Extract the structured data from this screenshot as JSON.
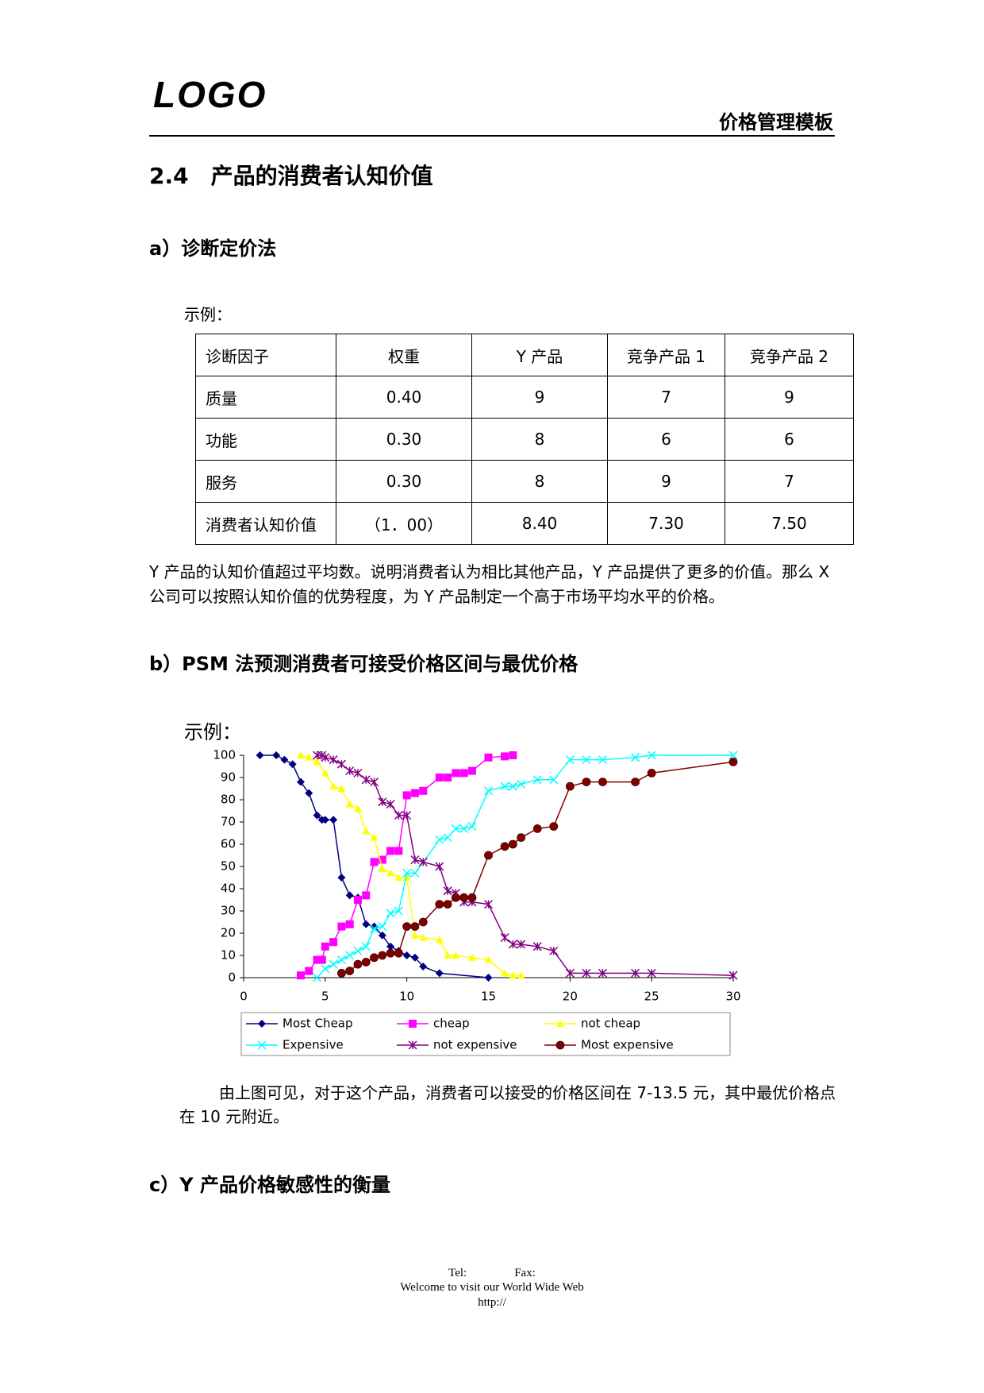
{
  "header": {
    "logo": "LOGO",
    "title": "价格管理模板"
  },
  "section": {
    "title": "2.4　产品的消费者认知价值"
  },
  "part_a": {
    "title": "a）诊断定价法",
    "example": "示例：",
    "table": {
      "header": [
        "诊断因子",
        "权重",
        "Y 产品",
        "竞争产品 1",
        "竞争产品 2"
      ],
      "rows": [
        [
          "质量",
          "0.40",
          "9",
          "7",
          "9"
        ],
        [
          "功能",
          "0.30",
          "8",
          "6",
          "6"
        ],
        [
          "服务",
          "0.30",
          "8",
          "9",
          "7"
        ],
        [
          "消费者认知价值",
          "（1．00）",
          "8.40",
          "7.30",
          "7.50"
        ]
      ]
    },
    "paragraph": "Y 产品的认知价值超过平均数。说明消费者认为相比其他产品，Y 产品提供了更多的价值。那么 X 公司可以按照认知价值的优势程度，为 Y 产品制定一个高于市场平均水平的价格。"
  },
  "part_b": {
    "title": "b）PSM 法预测消费者可接受价格区间与最优价格",
    "example": "示例：",
    "paragraph": "由上图可见，对于这个产品，消费者可以接受的价格区间在 7-13.5 元，其中最优价格点在 10 元附近。"
  },
  "part_c": {
    "title": "c）Y 产品价格敏感性的衡量"
  },
  "footer": {
    "tel": "Tel:",
    "fax": "Fax:",
    "welcome": "Welcome to visit our World Wide Web",
    "url": "http://"
  },
  "chart_data": {
    "type": "line",
    "xlim": [
      0,
      30
    ],
    "xticks": [
      0,
      5,
      10,
      15,
      20,
      25,
      30
    ],
    "ylim": [
      0,
      100
    ],
    "yticks": [
      0,
      10,
      20,
      30,
      40,
      50,
      60,
      70,
      80,
      90,
      100
    ],
    "grid": false,
    "legend": "bottom",
    "series": [
      {
        "name": "Most Cheap",
        "color": "#000080",
        "marker": "diamond",
        "x": [
          1,
          2,
          2.5,
          3,
          3.5,
          4,
          4.5,
          4.8,
          5,
          5.5,
          6,
          6.5,
          7,
          7.5,
          8,
          8.5,
          9,
          9.5,
          10,
          10.5,
          11,
          12,
          15
        ],
        "values": [
          100,
          100,
          98,
          96,
          88,
          83,
          73,
          71,
          71,
          71,
          45,
          37,
          36,
          24,
          23,
          19,
          14,
          12,
          10,
          9,
          5,
          2,
          0
        ]
      },
      {
        "name": "cheap",
        "color": "#ff00ff",
        "marker": "square",
        "x": [
          3.5,
          4,
          4.5,
          4.8,
          5,
          5.5,
          6,
          6.5,
          7,
          7.5,
          8,
          8.5,
          9,
          9.5,
          10,
          10.5,
          11,
          12,
          12.5,
          13,
          13.5,
          14,
          15,
          16,
          16.5
        ],
        "values": [
          1,
          3,
          8,
          8,
          14,
          16,
          23,
          24,
          35,
          37,
          52,
          53,
          57,
          57,
          82,
          83,
          84,
          90,
          90,
          92,
          92,
          93,
          99,
          99.5,
          100
        ]
      },
      {
        "name": "not cheap",
        "color": "#ffff00",
        "marker": "triangle",
        "x": [
          3.5,
          4,
          4.5,
          5,
          5.5,
          6,
          6.5,
          7,
          7.5,
          8,
          8.5,
          9,
          9.5,
          10,
          10.5,
          11,
          12,
          12.5,
          13,
          14,
          15,
          16,
          16.5,
          17
        ],
        "values": [
          100,
          99,
          97,
          92,
          86,
          85,
          78,
          76,
          66,
          63,
          49,
          47,
          45,
          45,
          19,
          18,
          17,
          10,
          10,
          9,
          8,
          2,
          1,
          1
        ]
      },
      {
        "name": "Expensive",
        "color": "#00ffff",
        "marker": "x",
        "x": [
          4.5,
          5,
          5.5,
          6,
          6.5,
          7,
          7.5,
          8,
          8.5,
          9,
          9.5,
          10,
          10.5,
          11,
          12,
          12.5,
          13,
          13.5,
          14,
          15,
          16,
          16.5,
          17,
          18,
          19,
          20,
          21,
          22,
          24,
          25,
          30
        ],
        "values": [
          0,
          4,
          6,
          8,
          10,
          12,
          14,
          22,
          23,
          29,
          30,
          47,
          47,
          52,
          62,
          63,
          67,
          67,
          68,
          84,
          86,
          86,
          87,
          89,
          89,
          98,
          98,
          98,
          99,
          100,
          100
        ]
      },
      {
        "name": "not expensive",
        "color": "#800080",
        "marker": "star",
        "x": [
          4.5,
          4.8,
          5,
          5.5,
          6,
          6.5,
          7,
          7.5,
          8,
          8.5,
          9,
          9.5,
          10,
          10.5,
          11,
          12,
          12.5,
          13,
          13.5,
          14,
          15,
          16,
          16.5,
          17,
          18,
          19,
          20,
          21,
          22,
          24,
          25,
          30
        ],
        "values": [
          100,
          100,
          99,
          98,
          96,
          93,
          92,
          89,
          88,
          79,
          78,
          73,
          73,
          53,
          52,
          50,
          39,
          38,
          34,
          34,
          33,
          18,
          15,
          15,
          14,
          12,
          2,
          2,
          2,
          2,
          2,
          1
        ]
      },
      {
        "name": "Most expensive",
        "color": "#800000",
        "marker": "circle",
        "x": [
          6,
          6.5,
          7,
          7.5,
          8,
          8.5,
          9,
          9.5,
          10,
          10.5,
          11,
          12,
          12.5,
          13,
          13.5,
          14,
          15,
          16,
          16.5,
          17,
          18,
          19,
          20,
          21,
          22,
          24,
          25,
          30
        ],
        "values": [
          2,
          3,
          6,
          7,
          9,
          10,
          11,
          11,
          23,
          23,
          25,
          33,
          33,
          36,
          36,
          36,
          55,
          59,
          60,
          63,
          67,
          68,
          86,
          88,
          88,
          88,
          92,
          97
        ]
      }
    ]
  }
}
